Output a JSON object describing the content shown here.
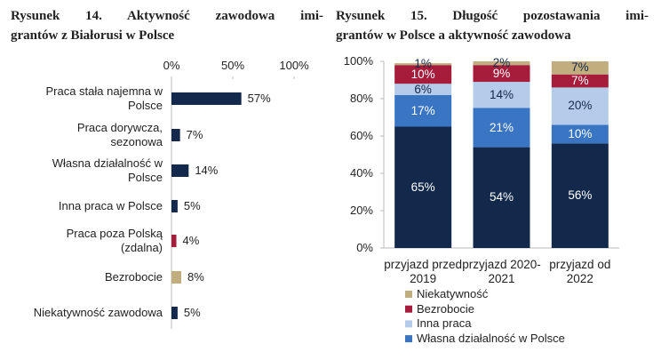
{
  "chart_data": [
    {
      "type": "hbar",
      "title": [
        "Rysunek 14. Aktywność zawodowa imi-",
        "grantów z Białorusi w Polsce"
      ],
      "categories": [
        "Praca stała najemna w\nPolsce",
        "Praca dorywcza,\nsezonowa",
        "Własna działalność w\nPolsce",
        "Inna praca w Polsce",
        "Praca poza Polską\n(zdalna)",
        "Bezrobocie",
        "Niekatywność zawodowa"
      ],
      "values": [
        57,
        7,
        14,
        5,
        4,
        8,
        5
      ],
      "value_labels": [
        "57%",
        "7%",
        "14%",
        "5%",
        "4%",
        "8%",
        "5%"
      ],
      "colors": [
        "#13294b",
        "#13294b",
        "#13294b",
        "#13294b",
        "#a51d3a",
        "#c2ad7f",
        "#13294b"
      ],
      "xlim": [
        0,
        100
      ],
      "xticks": [
        {
          "value": 0,
          "label": "0%"
        },
        {
          "value": 50,
          "label": "50%"
        },
        {
          "value": 100,
          "label": "100%"
        }
      ]
    },
    {
      "type": "stacked_bar",
      "title": [
        "Rysunek 15. Długość pozostawania imi-",
        "grantów w Polsce a aktywność zawodowa"
      ],
      "categories": [
        "przyjazd przed\n2019",
        "przyjazd 2020-\n2021",
        "przyjazd od\n2022"
      ],
      "series": [
        {
          "name": null,
          "color": "#13294b",
          "values": [
            65,
            54,
            56
          ],
          "value_labels": [
            "65%",
            "54%",
            "56%"
          ]
        },
        {
          "name": "Własna działalność w Polsce",
          "color": "#3a75c4",
          "values": [
            17,
            21,
            10
          ],
          "value_labels": [
            "17%",
            "21%",
            "10%"
          ]
        },
        {
          "name": "Inna praca",
          "color": "#b4cbe9",
          "values": [
            6,
            14,
            20
          ],
          "value_labels": [
            "6%",
            "14%",
            "20%"
          ]
        },
        {
          "name": "Bezrobocie",
          "color": "#a51d3a",
          "values": [
            10,
            9,
            7
          ],
          "value_labels": [
            "10%",
            "9%",
            "7%"
          ]
        },
        {
          "name": "Niekatywność",
          "color": "#c2ad7f",
          "values": [
            1,
            2,
            7
          ],
          "value_labels": [
            "1%",
            "2%",
            "7%"
          ]
        }
      ],
      "ylim": [
        0,
        100
      ],
      "yticks": [
        {
          "value": 0,
          "label": "0%"
        },
        {
          "value": 20,
          "label": "20%"
        },
        {
          "value": 40,
          "label": "40%"
        },
        {
          "value": 60,
          "label": "60%"
        },
        {
          "value": 80,
          "label": "80%"
        },
        {
          "value": 100,
          "label": "100%"
        }
      ]
    }
  ]
}
